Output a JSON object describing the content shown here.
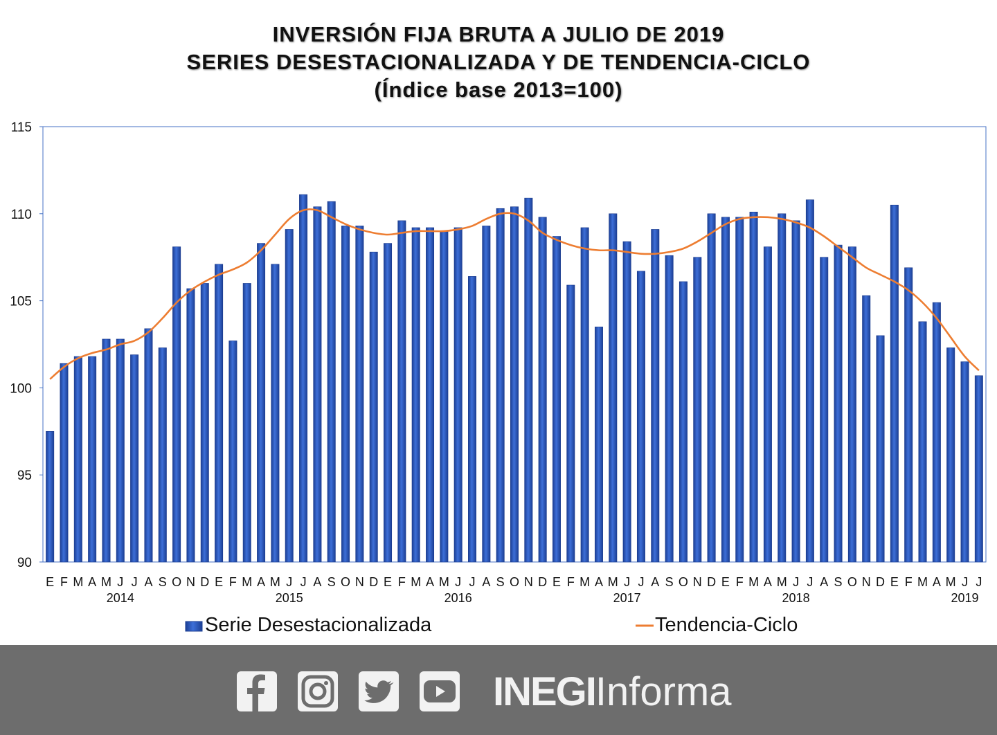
{
  "title": {
    "line1": "INVERSIÓN FIJA BRUTA A JULIO DE 2019",
    "line2": "SERIES DESESTACIONALIZADA Y DE TENDENCIA-CICLO",
    "line3": "(Índice base 2013=100)"
  },
  "chart_data": {
    "type": "bar",
    "ylim": [
      90,
      115
    ],
    "y_ticks": [
      90,
      95,
      100,
      105,
      110,
      115
    ],
    "x_month_labels": [
      "E",
      "F",
      "M",
      "A",
      "M",
      "J",
      "J",
      "A",
      "S",
      "O",
      "N",
      "D",
      "E",
      "F",
      "M",
      "A",
      "M",
      "J",
      "J",
      "A",
      "S",
      "O",
      "N",
      "D",
      "E",
      "F",
      "M",
      "A",
      "M",
      "J",
      "J",
      "A",
      "S",
      "O",
      "N",
      "D",
      "E",
      "F",
      "M",
      "A",
      "M",
      "J",
      "J",
      "A",
      "S",
      "O",
      "N",
      "D",
      "E",
      "F",
      "M",
      "A",
      "M",
      "J",
      "J",
      "A",
      "S",
      "O",
      "N",
      "D",
      "E",
      "F",
      "M",
      "A",
      "M",
      "J",
      "J"
    ],
    "x_year_labels": [
      {
        "label": "2014",
        "month_index": 5
      },
      {
        "label": "2015",
        "month_index": 17
      },
      {
        "label": "2016",
        "month_index": 29
      },
      {
        "label": "2017",
        "month_index": 41
      },
      {
        "label": "2018",
        "month_index": 53
      },
      {
        "label": "2019",
        "month_index": 65
      }
    ],
    "series": [
      {
        "name": "Serie Desestacionalizada",
        "type": "bar",
        "color": "#2e5fc7",
        "values": [
          97.5,
          101.4,
          101.8,
          101.8,
          102.8,
          102.8,
          101.9,
          103.4,
          102.3,
          108.1,
          105.7,
          106.0,
          107.1,
          102.7,
          106.0,
          108.3,
          107.1,
          109.1,
          111.1,
          110.4,
          110.7,
          109.3,
          109.3,
          107.8,
          108.3,
          109.6,
          109.2,
          109.2,
          109.0,
          109.2,
          106.4,
          109.3,
          110.3,
          110.4,
          110.9,
          109.8,
          108.7,
          105.9,
          109.2,
          103.5,
          110.0,
          108.4,
          106.7,
          109.1,
          107.6,
          106.1,
          107.5,
          110.0,
          109.8,
          109.8,
          110.1,
          108.1,
          110.0,
          109.6,
          110.8,
          107.5,
          108.2,
          108.1,
          105.3,
          103.0,
          110.5,
          106.9,
          103.8,
          104.9,
          102.3,
          101.5,
          100.7
        ]
      },
      {
        "name": "Tendencia-Ciclo",
        "type": "line",
        "color": "#ed7d31",
        "values": [
          100.5,
          101.2,
          101.7,
          102.0,
          102.2,
          102.5,
          102.7,
          103.2,
          104.0,
          104.9,
          105.6,
          106.1,
          106.5,
          106.8,
          107.2,
          107.9,
          108.8,
          109.7,
          110.2,
          110.2,
          109.8,
          109.4,
          109.1,
          108.9,
          108.8,
          108.9,
          109.0,
          109.0,
          109.0,
          109.1,
          109.3,
          109.7,
          110.0,
          110.0,
          109.6,
          108.9,
          108.5,
          108.2,
          108.0,
          107.9,
          107.9,
          107.8,
          107.7,
          107.7,
          107.8,
          108.0,
          108.4,
          108.9,
          109.4,
          109.7,
          109.8,
          109.8,
          109.7,
          109.5,
          109.2,
          108.7,
          108.1,
          107.5,
          106.9,
          106.5,
          106.1,
          105.6,
          104.9,
          104.0,
          102.9,
          101.8,
          101.0
        ]
      }
    ]
  },
  "legend": {
    "bar_label": "Serie Desestacionalizada",
    "line_label": "Tendencia-Ciclo"
  },
  "footer": {
    "brand_bold": "INEGI",
    "brand_light": "Informa",
    "icons": [
      "facebook-icon",
      "instagram-icon",
      "twitter-icon",
      "youtube-icon"
    ]
  }
}
